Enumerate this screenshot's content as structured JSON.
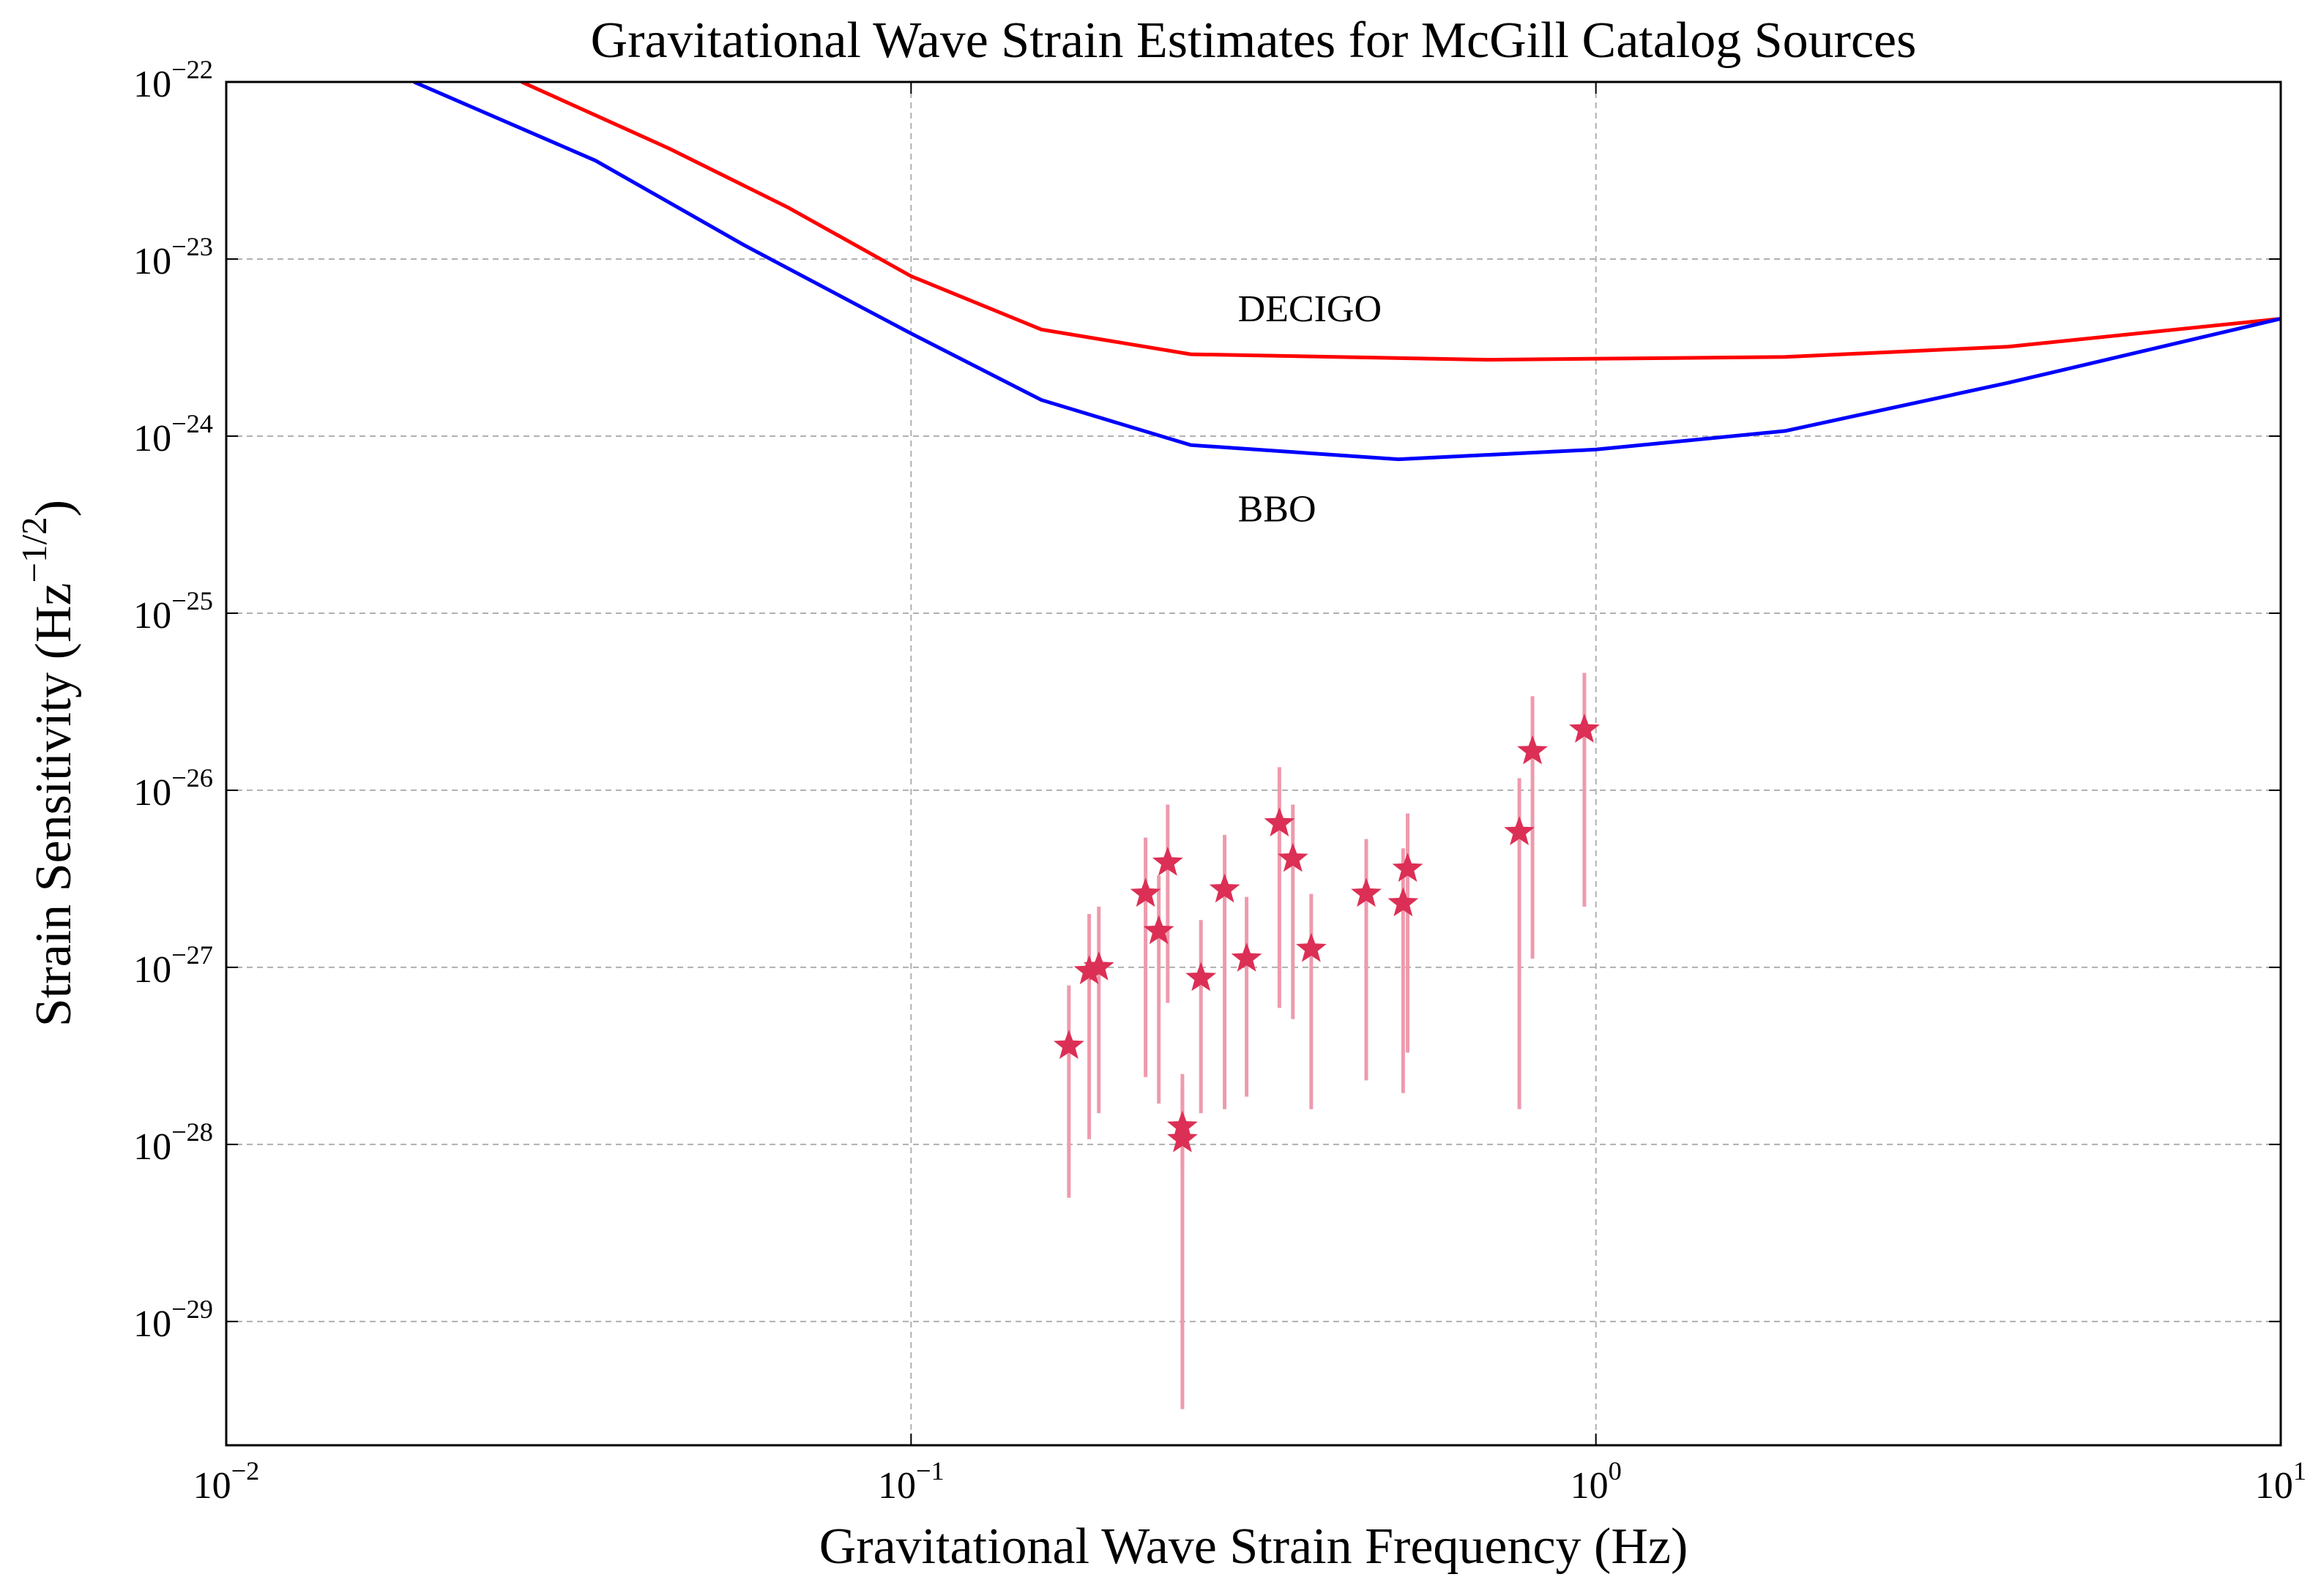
{
  "chart_data": {
    "type": "line",
    "title": "Gravitational Wave Strain Estimates for McGill Catalog Sources",
    "xlabel": "Gravitational Wave Strain Frequency (Hz)",
    "ylabel": "Strain Sensitivity (Hz−1/2)",
    "xscale": "log",
    "yscale": "log",
    "grid": true,
    "xlim": [
      0.01,
      10
    ],
    "ylim": [
      2e-30,
      1e-22
    ],
    "xticks": [
      {
        "value": 0.01,
        "label": "10−2"
      },
      {
        "value": 0.1,
        "label": "10−1"
      },
      {
        "value": 1,
        "label": "100"
      },
      {
        "value": 10,
        "label": "101"
      }
    ],
    "yticks": [
      {
        "value": 1e-29,
        "label": "10−29"
      },
      {
        "value": 1e-28,
        "label": "10−28"
      },
      {
        "value": 1e-27,
        "label": "10−27"
      },
      {
        "value": 1e-26,
        "label": "10−26"
      },
      {
        "value": 1e-25,
        "label": "10−25"
      },
      {
        "value": 1e-24,
        "label": "10−24"
      },
      {
        "value": 1e-23,
        "label": "10−23"
      },
      {
        "value": 1e-22,
        "label": "10−22"
      }
    ],
    "series": [
      {
        "type": "line",
        "color": "#ff0000",
        "x": [
          0.027,
          0.0444,
          0.0662,
          0.1,
          0.155,
          0.256,
          0.695,
          1.89,
          4.0,
          10
        ],
        "values": [
          1e-22,
          4.2e-23,
          1.95e-23,
          8e-24,
          4e-24,
          2.9e-24,
          2.7e-24,
          2.8e-24,
          3.2e-24,
          4.6e-24
        ]
      },
      {
        "type": "line",
        "color": "#0000ff",
        "x": [
          0.0188,
          0.0346,
          0.057,
          0.1,
          0.155,
          0.256,
          0.515,
          1,
          1.89,
          4.0,
          10
        ],
        "values": [
          1e-22,
          3.6e-23,
          1.2e-23,
          3.8e-24,
          1.6e-24,
          8.9e-25,
          7.4e-25,
          8.4e-25,
          1.07e-24,
          2e-24,
          4.6e-24
        ]
      },
      {
        "type": "errorbar",
        "color": "#dc2f55",
        "errcolor": "#ee9aad",
        "x": [
          0.17,
          0.182,
          0.188,
          0.22,
          0.23,
          0.237,
          0.249,
          0.249,
          0.265,
          0.287,
          0.309,
          0.345,
          0.361,
          0.384,
          0.462,
          0.523,
          0.531,
          0.773,
          0.808,
          0.962
        ],
        "values": [
          3.6e-28,
          9.5e-28,
          1e-27,
          2.6e-27,
          1.6e-27,
          3.9e-27,
          1.26e-28,
          1.07e-28,
          8.7e-28,
          2.75e-27,
          1.12e-27,
          6.5e-27,
          4.1e-27,
          1.27e-27,
          2.6e-27,
          2.3e-27,
          3.6e-27,
          5.8e-27,
          1.66e-26,
          2.2e-26
        ],
        "y_low": [
          5e-29,
          1.07e-28,
          1.5e-28,
          2.4e-28,
          1.7e-28,
          6.3e-28,
          3.2e-30,
          7.1e-29,
          1.5e-28,
          1.58e-28,
          1.86e-28,
          5.9e-28,
          5.1e-28,
          1.58e-28,
          2.3e-28,
          1.95e-28,
          3.3e-28,
          1.58e-28,
          1.12e-27,
          2.2e-27
        ],
        "y_high": [
          7.9e-28,
          2e-27,
          2.2e-27,
          5.4e-27,
          3.3e-27,
          8.3e-27,
          2.5e-28,
          2.1e-28,
          1.85e-27,
          5.6e-27,
          2.5e-27,
          1.35e-26,
          8.3e-27,
          2.6e-27,
          5.3e-27,
          4.7e-27,
          7.4e-27,
          1.17e-26,
          3.4e-26,
          4.6e-26
        ]
      }
    ],
    "annotations": [
      {
        "text": "DECIGO",
        "x": 0.3,
        "y": 5e-24,
        "color": "#ff0000"
      },
      {
        "text": "BBO",
        "x": 0.3,
        "y": 3.7e-25,
        "color": "#0000ff"
      }
    ]
  }
}
